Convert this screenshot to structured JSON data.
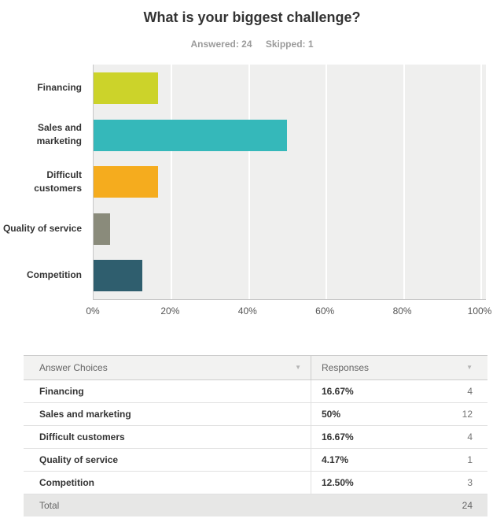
{
  "header": {
    "title": "What is your biggest challenge?",
    "answered_label": "Answered: 24",
    "skipped_label": "Skipped: 1"
  },
  "chart_data": {
    "type": "bar",
    "orientation": "horizontal",
    "title": "What is your biggest challenge?",
    "categories": [
      "Financing",
      "Sales and marketing",
      "Difficult customers",
      "Quality of service",
      "Competition"
    ],
    "values": [
      16.67,
      50,
      16.67,
      4.17,
      12.5
    ],
    "colors": [
      "#ccd32a",
      "#35b8ba",
      "#f5ac1e",
      "#8a8b7b",
      "#2f5e6e"
    ],
    "x_ticks": [
      "0%",
      "20%",
      "40%",
      "60%",
      "80%",
      "100%"
    ],
    "xlim": [
      0,
      100
    ],
    "grid": "vertical-white-lines",
    "plot_background": "#efefee",
    "legend": "none"
  },
  "table": {
    "columns": [
      "Answer Choices",
      "Responses"
    ],
    "sort_icon": "▼",
    "rows": [
      {
        "choice": "Financing",
        "percent": "16.67%",
        "count": "4"
      },
      {
        "choice": "Sales and marketing",
        "percent": "50%",
        "count": "12"
      },
      {
        "choice": "Difficult customers",
        "percent": "16.67%",
        "count": "4"
      },
      {
        "choice": "Quality of service",
        "percent": "4.17%",
        "count": "1"
      },
      {
        "choice": "Competition",
        "percent": "12.50%",
        "count": "3"
      }
    ],
    "total_label": "Total",
    "total_count": "24"
  }
}
